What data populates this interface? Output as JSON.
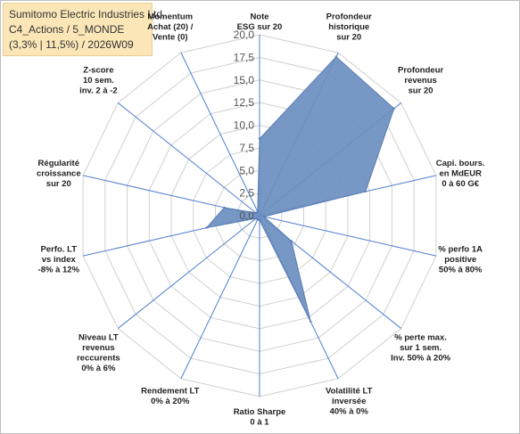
{
  "title": {
    "line1": "Sumitomo Electric Industries Ltd",
    "line2": "C4_Actions / 5_MONDE",
    "line3": "(3,3% | 11,5%) / 2026W09"
  },
  "chart_data": {
    "type": "radar",
    "rmin": 0,
    "rmax": 20,
    "ticks": [
      "0,0",
      "2,5",
      "5,0",
      "7,5",
      "10,0",
      "12,5",
      "15,0",
      "17,5",
      "20,0"
    ],
    "grid": true,
    "axes": [
      {
        "label": [
          "Note",
          "ESG sur 20"
        ],
        "value": 8.5
      },
      {
        "label": [
          "Profondeur",
          "historique",
          "sur 20"
        ],
        "value": 19.5
      },
      {
        "label": [
          "Profondeur",
          "revenus",
          "sur 20"
        ],
        "value": 19.0
      },
      {
        "label": [
          "Capi. bours.",
          "en MdEUR",
          "0 à 60 G€"
        ],
        "value": 12.0
      },
      {
        "label": [
          "% perfo 1A",
          "positive",
          "50% à 80%"
        ],
        "value": 0.5
      },
      {
        "label": [
          "% perte max.",
          "sur 1 sem.",
          "Inv. 50% à 20%"
        ],
        "value": 4.5
      },
      {
        "label": [
          "Volatilité LT",
          "inversée",
          "40% à 0%"
        ],
        "value": 13.0
      },
      {
        "label": [
          "Ratio Sharpe",
          "0 à 1"
        ],
        "value": 0.5
      },
      {
        "label": [
          "Rendement LT",
          "0% à 20%"
        ],
        "value": 0.5
      },
      {
        "label": [
          "Niveau LT",
          "revenus",
          "reccurents",
          "0% à 6%"
        ],
        "value": 0.5
      },
      {
        "label": [
          "Perfo. LT",
          "vs index",
          "-8% à 12%"
        ],
        "value": 6.0
      },
      {
        "label": [
          "Régularité",
          "croissance",
          "sur 20"
        ],
        "value": 4.0
      },
      {
        "label": [
          "Z-score",
          "10 sem.",
          "inv. 2 à -2"
        ],
        "value": 0.5
      },
      {
        "label": [
          "Momentum",
          "Achat (20) /",
          "Vente (0)"
        ],
        "value": 0.5
      }
    ],
    "colors": {
      "fill": "#6d8fc0",
      "stroke": "#5a7db5",
      "spoke": "#4f7fd0",
      "grid": "#d0d0d0"
    }
  }
}
